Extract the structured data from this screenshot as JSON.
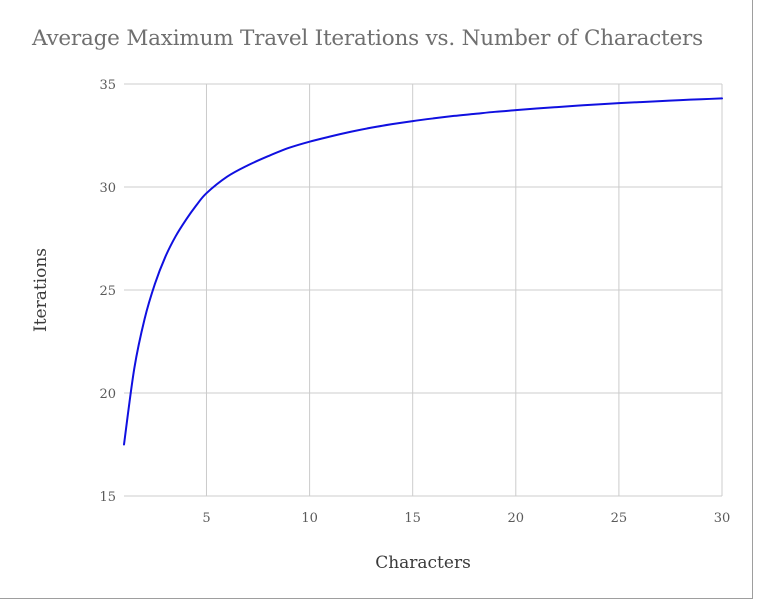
{
  "chart_data": {
    "type": "line",
    "title": "Average Maximum Travel Iterations vs. Number of Characters",
    "xlabel": "Characters",
    "ylabel": "Iterations",
    "xlim": [
      1,
      30
    ],
    "ylim": [
      15,
      35
    ],
    "x_ticks": [
      5,
      10,
      15,
      20,
      25,
      30
    ],
    "y_ticks": [
      15,
      20,
      25,
      30,
      35
    ],
    "grid": true,
    "legend": "none",
    "series": [
      {
        "color": "#1010e0",
        "x": [
          1,
          1.5,
          2,
          2.5,
          3,
          3.5,
          4,
          4.5,
          5,
          6,
          7,
          8,
          9,
          10,
          11,
          12,
          13,
          14,
          15,
          16,
          17,
          18,
          19,
          20,
          21,
          22,
          23,
          24,
          25,
          26,
          27,
          28,
          29,
          30
        ],
        "y": [
          17.5,
          21.2,
          23.6,
          25.3,
          26.6,
          27.6,
          28.4,
          29.1,
          29.7,
          30.5,
          31.05,
          31.5,
          31.9,
          32.2,
          32.45,
          32.68,
          32.88,
          33.05,
          33.2,
          33.33,
          33.45,
          33.55,
          33.65,
          33.73,
          33.81,
          33.88,
          33.95,
          34.01,
          34.07,
          34.12,
          34.17,
          34.22,
          34.26,
          34.3
        ]
      }
    ]
  }
}
